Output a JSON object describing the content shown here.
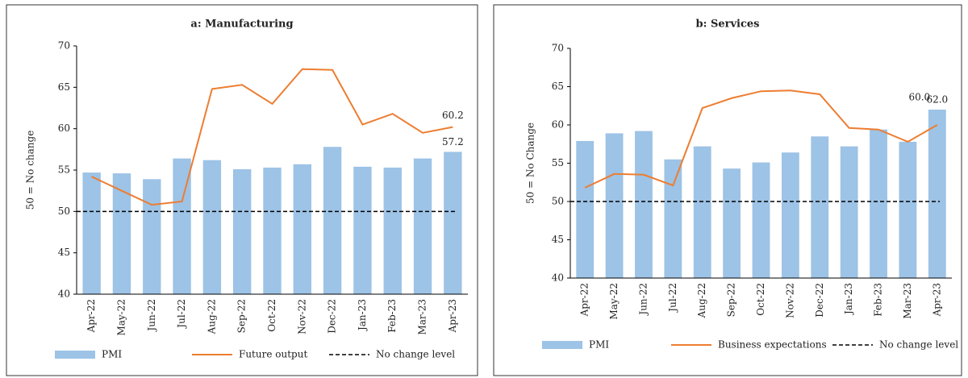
{
  "chart_data": [
    {
      "type": "combo",
      "title": "a: Manufacturing",
      "y_label": "50 = No change",
      "categories": [
        "Apr-22",
        "May-22",
        "Jun-22",
        "Jul-22",
        "Aug-22",
        "Sep-22",
        "Oct-22",
        "Nov-22",
        "Dec-22",
        "Jan-23",
        "Feb-23",
        "Mar-23",
        "Apr-23"
      ],
      "ylim": [
        40,
        70
      ],
      "yticks": [
        40,
        45,
        50,
        55,
        60,
        65,
        70
      ],
      "series": [
        {
          "name": "PMI",
          "kind": "bar",
          "color": "#9dc3e6",
          "values": [
            54.7,
            54.6,
            53.9,
            56.4,
            56.2,
            55.1,
            55.3,
            55.7,
            57.8,
            55.4,
            55.3,
            56.4,
            57.2
          ],
          "value_labels": [
            null,
            null,
            null,
            null,
            null,
            null,
            null,
            null,
            null,
            null,
            null,
            null,
            "57.2"
          ]
        },
        {
          "name": "Future output",
          "kind": "line",
          "color": "#ed7d31",
          "values": [
            54.2,
            52.5,
            50.8,
            51.2,
            64.8,
            65.3,
            63.0,
            67.2,
            67.1,
            60.5,
            61.8,
            59.5,
            60.2
          ],
          "value_labels": [
            null,
            null,
            null,
            null,
            null,
            null,
            null,
            null,
            null,
            null,
            null,
            null,
            "60.2"
          ]
        }
      ],
      "reference": {
        "name": "No change level",
        "value": 50,
        "color": "#000000"
      }
    },
    {
      "type": "combo",
      "title": "b: Services",
      "y_label": "50 = No Change",
      "categories": [
        "Apr-22",
        "May-22",
        "Jun-22",
        "Jul-22",
        "Aug-22",
        "Sep-22",
        "Oct-22",
        "Nov-22",
        "Dec-22",
        "Jan-23",
        "Feb-23",
        "Mar-23",
        "Apr-23"
      ],
      "ylim": [
        40,
        70
      ],
      "yticks": [
        40,
        45,
        50,
        55,
        60,
        65,
        70
      ],
      "series": [
        {
          "name": "PMI",
          "kind": "bar",
          "color": "#9dc3e6",
          "values": [
            57.9,
            58.9,
            59.2,
            55.5,
            57.2,
            54.3,
            55.1,
            56.4,
            58.5,
            57.2,
            59.4,
            57.8,
            62.0
          ],
          "value_labels": [
            null,
            null,
            null,
            null,
            null,
            null,
            null,
            null,
            null,
            null,
            null,
            null,
            "62.0"
          ]
        },
        {
          "name": "Business expectations",
          "kind": "line",
          "color": "#ed7d31",
          "values": [
            51.8,
            53.6,
            53.5,
            52.1,
            62.2,
            63.5,
            64.4,
            64.5,
            64.0,
            59.6,
            59.4,
            57.8,
            60.0
          ],
          "value_labels": [
            null,
            null,
            null,
            null,
            null,
            null,
            null,
            null,
            null,
            null,
            null,
            null,
            "60.0"
          ]
        }
      ],
      "reference": {
        "name": "No change level",
        "value": 50,
        "color": "#000000"
      }
    }
  ]
}
